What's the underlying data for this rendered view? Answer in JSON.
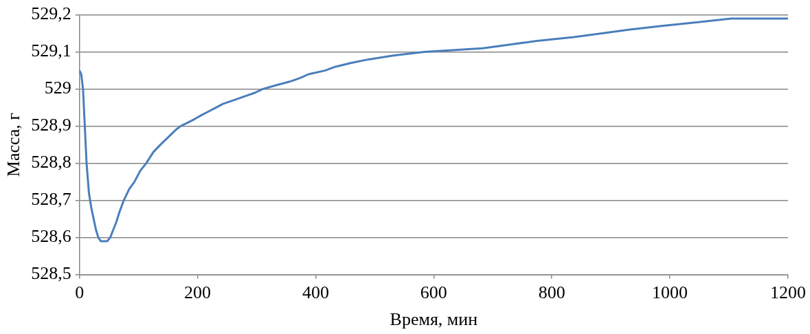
{
  "chart_data": {
    "type": "line",
    "xlabel": "Время, мин",
    "ylabel": "Масса, г",
    "x": [
      0,
      3,
      6,
      9,
      12,
      16,
      20,
      24,
      28,
      32,
      36,
      42,
      47,
      52,
      57,
      62,
      68,
      75,
      84,
      93,
      103,
      113,
      125,
      137,
      150,
      163,
      171,
      184,
      196,
      207,
      219,
      231,
      243,
      261,
      279,
      297,
      310,
      332,
      356,
      374,
      388,
      416,
      433,
      459,
      490,
      530,
      584,
      683,
      730,
      775,
      837,
      885,
      930,
      986,
      1045,
      1104,
      1200
    ],
    "series": [
      {
        "color": "#4a7ebb",
        "values": [
          529.05,
          529.04,
          529.0,
          528.9,
          528.8,
          528.72,
          528.68,
          528.65,
          528.62,
          528.6,
          528.59,
          528.59,
          528.59,
          528.6,
          528.62,
          528.64,
          528.67,
          528.7,
          528.73,
          528.75,
          528.78,
          528.8,
          528.83,
          528.85,
          528.87,
          528.89,
          528.9,
          528.91,
          528.92,
          528.93,
          528.94,
          528.95,
          528.96,
          528.97,
          528.98,
          528.99,
          529.0,
          529.01,
          529.02,
          529.03,
          529.04,
          529.05,
          529.06,
          529.07,
          529.08,
          529.09,
          529.1,
          529.11,
          529.12,
          529.13,
          529.14,
          529.15,
          529.16,
          529.17,
          529.18,
          529.19,
          529.19
        ]
      }
    ],
    "xlim": [
      0,
      1200
    ],
    "xticks": [
      0,
      200,
      400,
      600,
      800,
      1000,
      1200
    ],
    "ylim": [
      528.5,
      529.2
    ],
    "yticks": [
      {
        "value": 528.5,
        "label": "528,5"
      },
      {
        "value": 528.6,
        "label": "528,6"
      },
      {
        "value": 528.7,
        "label": "528,7"
      },
      {
        "value": 528.8,
        "label": "528,8"
      },
      {
        "value": 528.9,
        "label": "528,9"
      },
      {
        "value": 529,
        "label": "529"
      },
      {
        "value": 529.1,
        "label": "529,1"
      },
      {
        "value": 529.2,
        "label": "529,2"
      }
    ],
    "grid": "y",
    "legend": false,
    "marker": "none",
    "line_style": "solid"
  }
}
